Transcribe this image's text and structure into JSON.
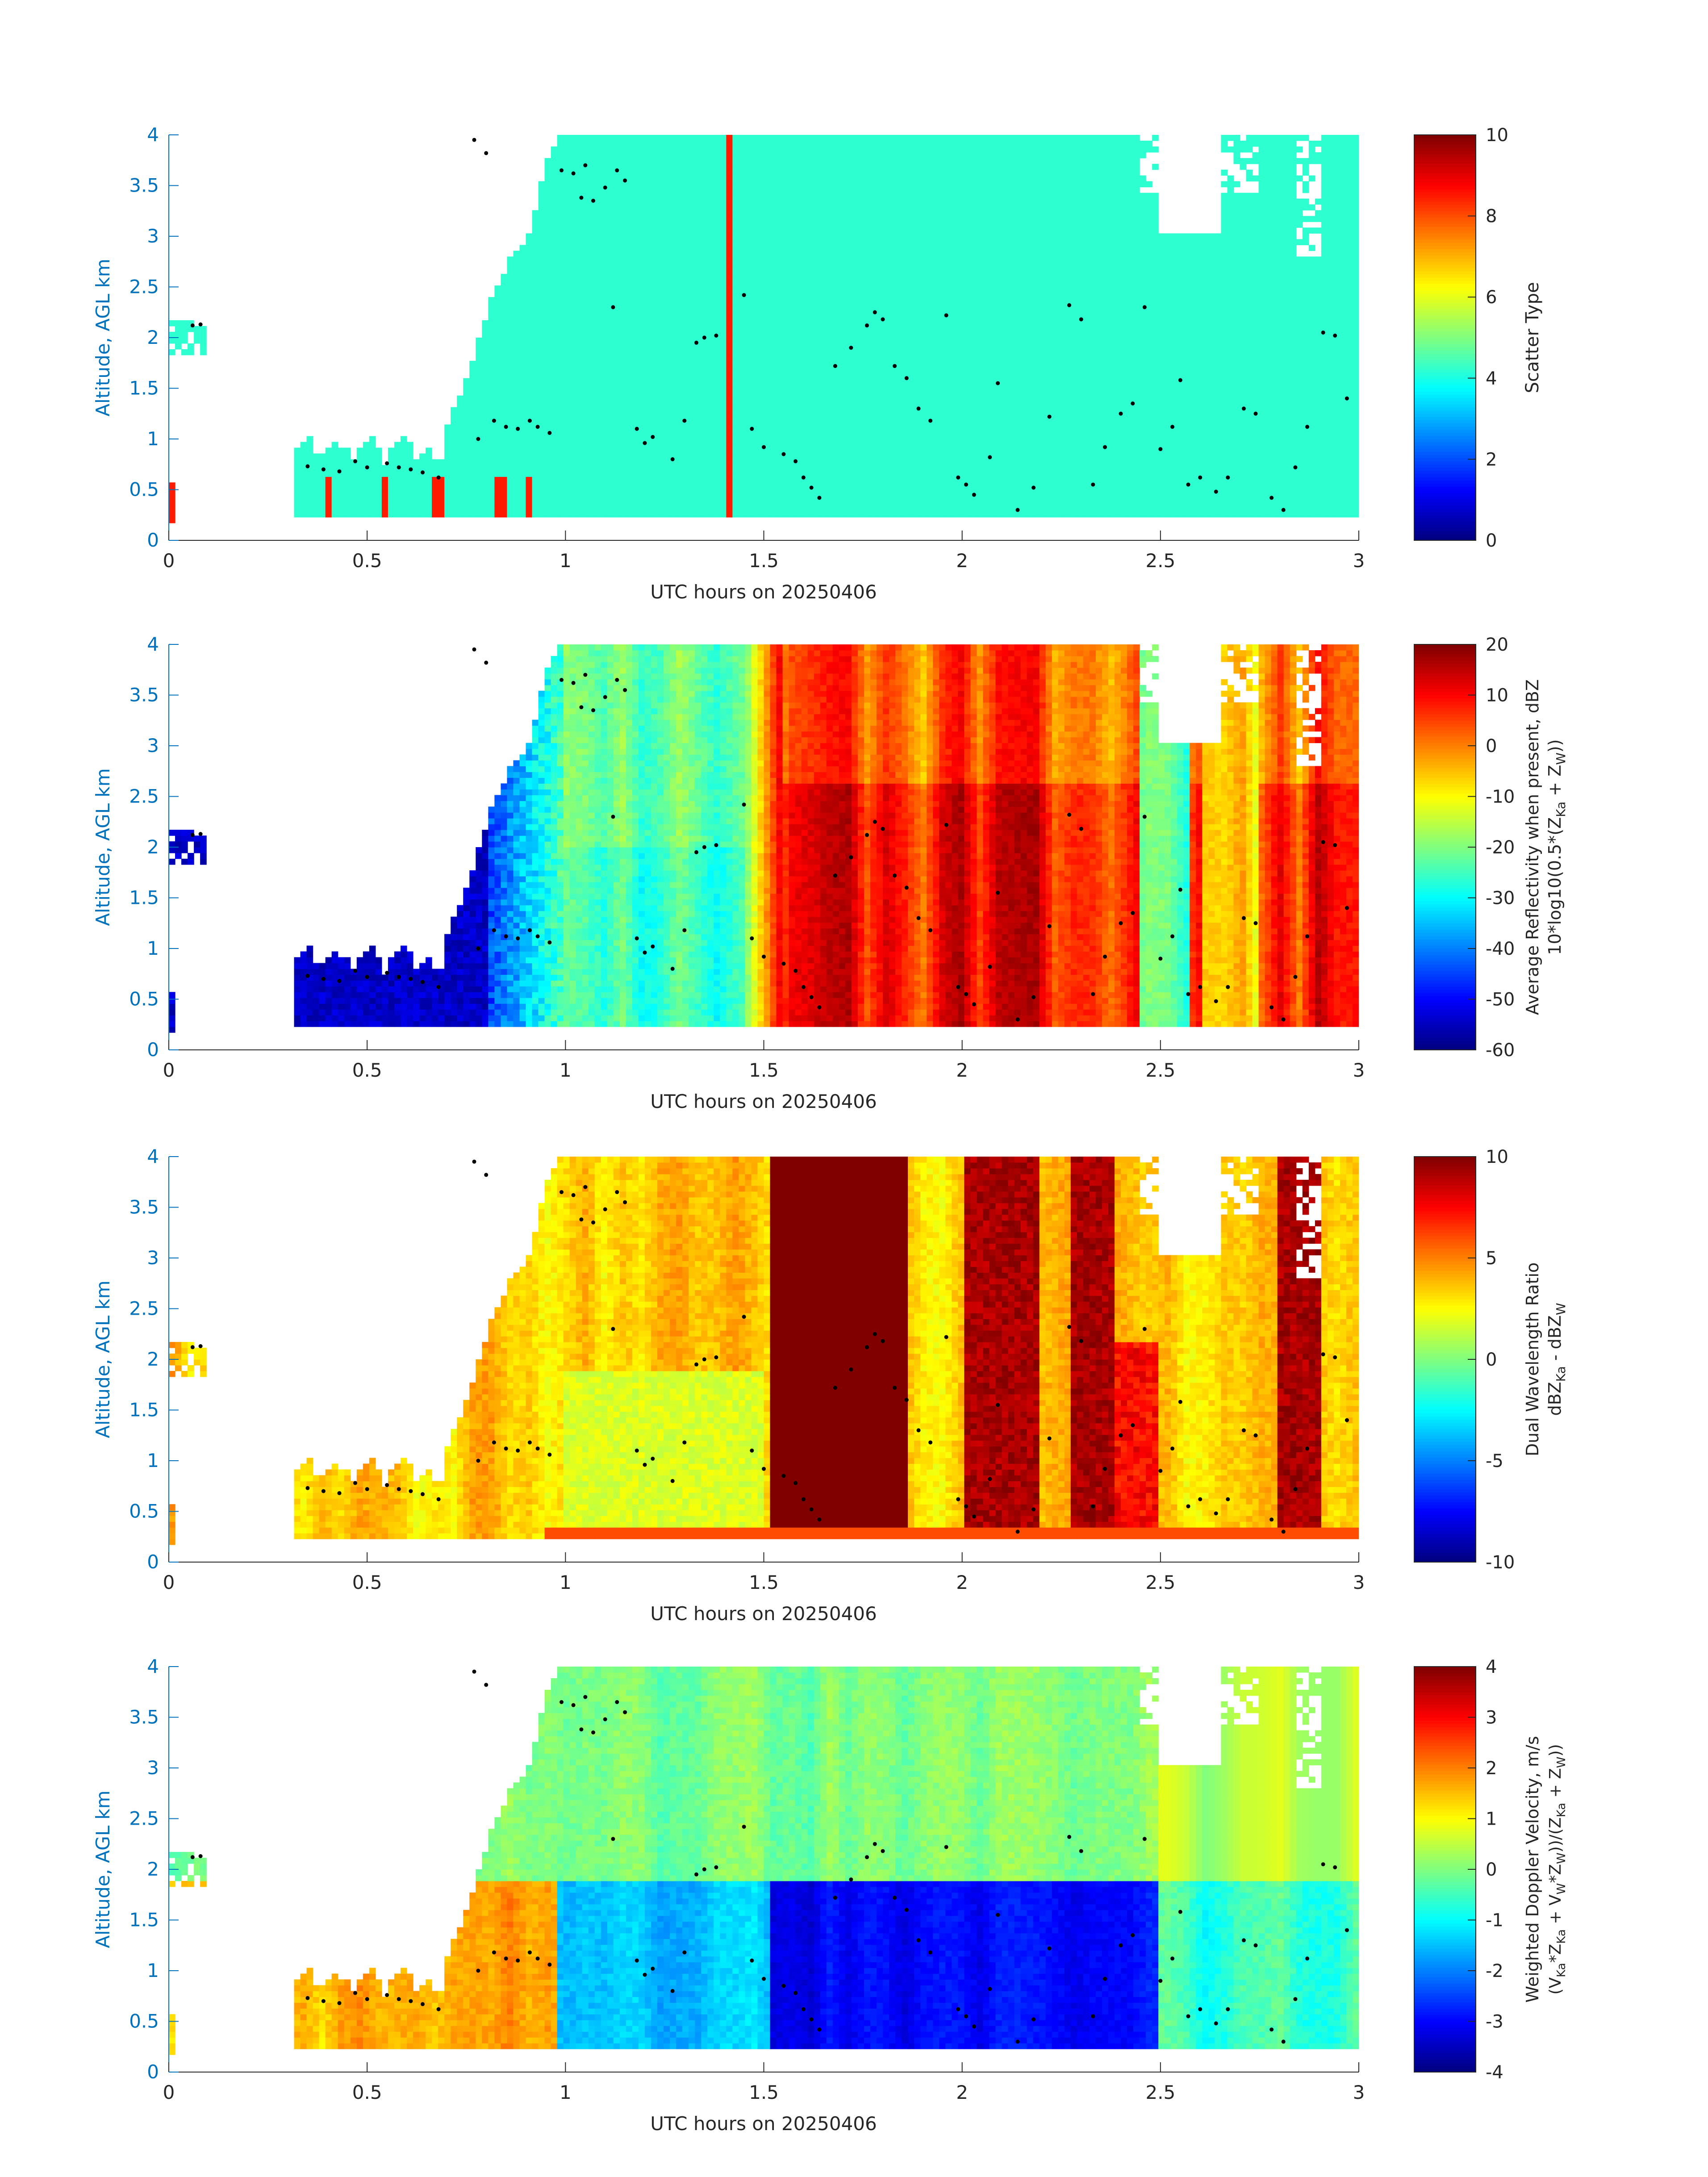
{
  "figure": {
    "time_range_hours": [
      0,
      3
    ],
    "altitude_range_km": [
      0,
      4
    ],
    "shared_x_ticks": [
      0,
      0.5,
      1,
      1.5,
      2,
      2.5,
      3
    ],
    "shared_y_ticks": [
      0,
      0.5,
      1,
      1.5,
      2,
      2.5,
      3,
      3.5,
      4
    ],
    "axis_label_color": "#0072BD",
    "colormap": "jet"
  },
  "chart_data": [
    {
      "type": "heatmap",
      "xlabel": "UTC hours on 20250406",
      "ylabel": "Altitude, AGL km",
      "xlim": [
        0,
        3
      ],
      "ylim": [
        0,
        4
      ],
      "xticks": [
        "0",
        "0.5",
        "1",
        "1.5",
        "2",
        "2.5",
        "3"
      ],
      "yticks": [
        "0",
        "0.5",
        "1",
        "1.5",
        "2",
        "2.5",
        "3",
        "3.5",
        "4"
      ],
      "colorbar": {
        "label_lines": [
          "Scatter Type"
        ],
        "clim": [
          0,
          10
        ],
        "ticks": [
          "0",
          "2",
          "4",
          "6",
          "8",
          "10"
        ]
      },
      "dominant_value": 4.2,
      "notes": "Mostly uniform cyan (~4.2) returns from ~0.75 h onward; red (~8.5) streaks near 0.4, 0.55, 0.7, 0.85 h low levels and a full-height red column at ~1.41 h."
    },
    {
      "type": "heatmap",
      "xlabel": "UTC hours on 20250406",
      "ylabel": "Altitude, AGL km",
      "xlim": [
        0,
        3
      ],
      "ylim": [
        0,
        4
      ],
      "xticks": [
        "0",
        "0.5",
        "1",
        "1.5",
        "2",
        "2.5",
        "3"
      ],
      "yticks": [
        "0",
        "0.5",
        "1",
        "1.5",
        "2",
        "2.5",
        "3",
        "3.5",
        "4"
      ],
      "colorbar": {
        "label_lines": [
          "Average Reflectivity when present, dBZ",
          "10*log10(0.5*(Z",
          "Ka",
          " + Z",
          "W",
          "))"
        ],
        "clim": [
          -60,
          20
        ],
        "ticks": [
          "-60",
          "-50",
          "-40",
          "-30",
          "-20",
          "-10",
          "0",
          "10",
          "20"
        ]
      },
      "notes": "Low reflectivity (-50 to -60 dBZ) before 1 h, -30 to -15 dBZ 1-1.5 h, strong 5-20 dBZ precipitation bands after 1.5 h."
    },
    {
      "type": "heatmap",
      "xlabel": "UTC hours on 20250406",
      "ylabel": "Altitude, AGL km",
      "xlim": [
        0,
        3
      ],
      "ylim": [
        0,
        4
      ],
      "xticks": [
        "0",
        "0.5",
        "1",
        "1.5",
        "2",
        "2.5",
        "3"
      ],
      "yticks": [
        "0",
        "0.5",
        "1",
        "1.5",
        "2",
        "2.5",
        "3",
        "3.5",
        "4"
      ],
      "colorbar": {
        "label_lines": [
          "Dual Wavelength Ratio",
          "dBZ",
          "Ka",
          " - dBZ",
          "W"
        ],
        "clim": [
          -10,
          10
        ],
        "ticks": [
          "-10",
          "-5",
          "0",
          "5",
          "10"
        ]
      },
      "notes": "Mostly 1-5 dB, saturated 10 dB in columns at 1.52-1.87 h, 2.0-2.2 h, 2.27-2.38 h, 2.8-2.9 h."
    },
    {
      "type": "heatmap",
      "xlabel": "UTC hours on 20250406",
      "ylabel": "Altitude, AGL km",
      "xlim": [
        0,
        3
      ],
      "ylim": [
        0,
        4
      ],
      "xticks": [
        "0",
        "0.5",
        "1",
        "1.5",
        "2",
        "2.5",
        "3"
      ],
      "yticks": [
        "0",
        "0.5",
        "1",
        "1.5",
        "2",
        "2.5",
        "3",
        "3.5",
        "4"
      ],
      "colorbar": {
        "label_lines": [
          "Weighted Doppler Velocity, m/s",
          "(V",
          "Ka",
          "*Z",
          "Ka",
          " + V",
          "W",
          "*Z",
          "W",
          "))/(Z",
          "Ka",
          " + Z",
          "W",
          "))"
        ],
        "clim": [
          -4,
          4
        ],
        "ticks": [
          "-4",
          "-3",
          "-2",
          "-1",
          "0",
          "1",
          "2",
          "3",
          "4"
        ]
      },
      "notes": "Near 0 to -1 m/s above ~1.9 km; -2 to -4 m/s below 1.9 km after 1 h; small updrafts (+1 to +2 m/s) around 0.45 and 0.9 h."
    }
  ],
  "overlay_points": {
    "description": "black dots repeated in every panel",
    "points": [
      [
        0.06,
        2.12
      ],
      [
        0.08,
        2.13
      ],
      [
        0.35,
        0.73
      ],
      [
        0.39,
        0.7
      ],
      [
        0.43,
        0.68
      ],
      [
        0.47,
        0.78
      ],
      [
        0.5,
        0.72
      ],
      [
        0.55,
        0.76
      ],
      [
        0.58,
        0.72
      ],
      [
        0.61,
        0.7
      ],
      [
        0.64,
        0.67
      ],
      [
        0.68,
        0.62
      ],
      [
        0.77,
        3.95
      ],
      [
        0.78,
        1.0
      ],
      [
        0.8,
        3.82
      ],
      [
        0.82,
        1.18
      ],
      [
        0.85,
        1.12
      ],
      [
        0.88,
        1.1
      ],
      [
        0.91,
        1.18
      ],
      [
        0.93,
        1.12
      ],
      [
        0.96,
        1.06
      ],
      [
        0.99,
        3.65
      ],
      [
        1.02,
        3.62
      ],
      [
        1.05,
        3.7
      ],
      [
        1.04,
        3.38
      ],
      [
        1.07,
        3.35
      ],
      [
        1.1,
        3.48
      ],
      [
        1.13,
        3.65
      ],
      [
        1.15,
        3.55
      ],
      [
        1.12,
        2.3
      ],
      [
        1.18,
        1.1
      ],
      [
        1.2,
        0.96
      ],
      [
        1.22,
        1.02
      ],
      [
        1.27,
        0.8
      ],
      [
        1.3,
        1.18
      ],
      [
        1.35,
        2.0
      ],
      [
        1.38,
        2.02
      ],
      [
        1.33,
        1.95
      ],
      [
        1.45,
        2.42
      ],
      [
        1.47,
        1.1
      ],
      [
        1.5,
        0.92
      ],
      [
        1.55,
        0.85
      ],
      [
        1.58,
        0.78
      ],
      [
        1.6,
        0.62
      ],
      [
        1.62,
        0.52
      ],
      [
        1.64,
        0.42
      ],
      [
        1.68,
        1.72
      ],
      [
        1.72,
        1.9
      ],
      [
        1.76,
        2.12
      ],
      [
        1.78,
        2.25
      ],
      [
        1.8,
        2.18
      ],
      [
        1.83,
        1.72
      ],
      [
        1.86,
        1.6
      ],
      [
        1.89,
        1.3
      ],
      [
        1.92,
        1.18
      ],
      [
        1.96,
        2.22
      ],
      [
        1.99,
        0.62
      ],
      [
        2.01,
        0.55
      ],
      [
        2.03,
        0.45
      ],
      [
        2.07,
        0.82
      ],
      [
        2.09,
        1.55
      ],
      [
        2.14,
        0.3
      ],
      [
        2.18,
        0.52
      ],
      [
        2.22,
        1.22
      ],
      [
        2.27,
        2.32
      ],
      [
        2.3,
        2.18
      ],
      [
        2.33,
        0.55
      ],
      [
        2.36,
        0.92
      ],
      [
        2.4,
        1.25
      ],
      [
        2.43,
        1.35
      ],
      [
        2.46,
        2.3
      ],
      [
        2.5,
        0.9
      ],
      [
        2.53,
        1.12
      ],
      [
        2.55,
        1.58
      ],
      [
        2.57,
        0.55
      ],
      [
        2.6,
        0.62
      ],
      [
        2.64,
        0.48
      ],
      [
        2.67,
        0.62
      ],
      [
        2.71,
        1.3
      ],
      [
        2.74,
        1.25
      ],
      [
        2.78,
        0.42
      ],
      [
        2.81,
        0.3
      ],
      [
        2.84,
        0.72
      ],
      [
        2.87,
        1.12
      ],
      [
        2.91,
        2.05
      ],
      [
        2.94,
        2.02
      ],
      [
        2.97,
        1.4
      ]
    ]
  }
}
